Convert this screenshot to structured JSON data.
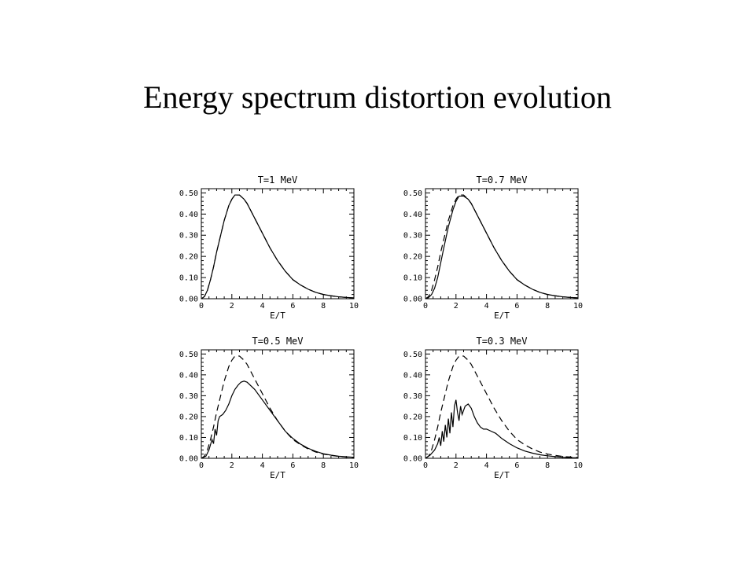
{
  "slide": {
    "title": "Energy spectrum distortion evolution"
  },
  "chart_data": [
    {
      "type": "line",
      "title": "T=1 MeV",
      "xlabel": "E/T",
      "ylabel": "",
      "xlim": [
        0,
        10
      ],
      "ylim": [
        0,
        0.52
      ],
      "x_ticks": [
        "0",
        "2",
        "4",
        "6",
        "8",
        "10"
      ],
      "y_ticks": [
        "0.00",
        "0.10",
        "0.20",
        "0.30",
        "0.40",
        "0.50"
      ],
      "series": [
        {
          "style": "dashed",
          "x": [
            0,
            0.2,
            0.4,
            0.6,
            0.8,
            1,
            1.2,
            1.5,
            1.8,
            2,
            2.2,
            2.5,
            2.8,
            3,
            3.5,
            4,
            4.5,
            5,
            5.5,
            6,
            6.5,
            7,
            7.5,
            8,
            8.5,
            9,
            9.5,
            10
          ],
          "y": [
            0,
            0.01,
            0.04,
            0.09,
            0.15,
            0.22,
            0.28,
            0.37,
            0.44,
            0.47,
            0.49,
            0.49,
            0.47,
            0.45,
            0.38,
            0.31,
            0.24,
            0.18,
            0.13,
            0.09,
            0.065,
            0.045,
            0.03,
            0.02,
            0.014,
            0.009,
            0.006,
            0.004
          ]
        },
        {
          "style": "solid",
          "x": [
            0,
            0.2,
            0.4,
            0.6,
            0.8,
            1,
            1.2,
            1.5,
            1.8,
            2,
            2.2,
            2.5,
            2.8,
            3,
            3.5,
            4,
            4.5,
            5,
            5.5,
            6,
            6.5,
            7,
            7.5,
            8,
            8.5,
            9,
            9.5,
            10
          ],
          "y": [
            0,
            0.01,
            0.04,
            0.09,
            0.15,
            0.22,
            0.28,
            0.37,
            0.44,
            0.47,
            0.49,
            0.49,
            0.47,
            0.45,
            0.38,
            0.31,
            0.24,
            0.18,
            0.13,
            0.09,
            0.065,
            0.045,
            0.03,
            0.02,
            0.014,
            0.009,
            0.006,
            0.004
          ]
        }
      ]
    },
    {
      "type": "line",
      "title": "T=0.7 MeV",
      "xlabel": "E/T",
      "ylabel": "",
      "xlim": [
        0,
        10
      ],
      "ylim": [
        0,
        0.52
      ],
      "x_ticks": [
        "0",
        "2",
        "4",
        "6",
        "8",
        "10"
      ],
      "y_ticks": [
        "0.00",
        "0.10",
        "0.20",
        "0.30",
        "0.40",
        "0.50"
      ],
      "series": [
        {
          "style": "dashed",
          "x": [
            0,
            0.2,
            0.4,
            0.6,
            0.8,
            1,
            1.2,
            1.5,
            1.8,
            2,
            2.2,
            2.5,
            2.8,
            3,
            3.5,
            4,
            4.5,
            5,
            5.5,
            6,
            6.5,
            7,
            7.5,
            8,
            8.5,
            9,
            9.5,
            10
          ],
          "y": [
            0,
            0.01,
            0.04,
            0.09,
            0.15,
            0.22,
            0.28,
            0.37,
            0.44,
            0.47,
            0.49,
            0.49,
            0.47,
            0.45,
            0.38,
            0.31,
            0.24,
            0.18,
            0.13,
            0.09,
            0.065,
            0.045,
            0.03,
            0.02,
            0.014,
            0.009,
            0.006,
            0.004
          ]
        },
        {
          "style": "solid",
          "x": [
            0,
            0.2,
            0.4,
            0.6,
            0.8,
            1,
            1.2,
            1.5,
            1.8,
            2,
            2.2,
            2.5,
            2.8,
            3,
            3.5,
            4,
            4.5,
            5,
            5.5,
            6,
            6.5,
            7,
            7.5,
            8,
            8.5,
            9,
            9.5,
            10
          ],
          "y": [
            0,
            0.005,
            0.02,
            0.05,
            0.1,
            0.17,
            0.24,
            0.34,
            0.42,
            0.46,
            0.485,
            0.485,
            0.47,
            0.45,
            0.38,
            0.31,
            0.24,
            0.18,
            0.13,
            0.09,
            0.065,
            0.045,
            0.03,
            0.02,
            0.014,
            0.009,
            0.006,
            0.004
          ]
        }
      ]
    },
    {
      "type": "line",
      "title": "T=0.5 MeV",
      "xlabel": "E/T",
      "ylabel": "",
      "xlim": [
        0,
        10
      ],
      "ylim": [
        0,
        0.52
      ],
      "x_ticks": [
        "0",
        "2",
        "4",
        "6",
        "8",
        "10"
      ],
      "y_ticks": [
        "0.00",
        "0.10",
        "0.20",
        "0.30",
        "0.40",
        "0.50"
      ],
      "series": [
        {
          "style": "dashed",
          "x": [
            0,
            0.2,
            0.4,
            0.6,
            0.8,
            1,
            1.2,
            1.5,
            1.8,
            2,
            2.2,
            2.5,
            2.8,
            3,
            3.5,
            4,
            4.5,
            5,
            5.5,
            6,
            6.5,
            7,
            7.5,
            8,
            8.5,
            9,
            9.5,
            10
          ],
          "y": [
            0,
            0.01,
            0.04,
            0.09,
            0.15,
            0.22,
            0.28,
            0.37,
            0.44,
            0.47,
            0.49,
            0.49,
            0.47,
            0.45,
            0.38,
            0.31,
            0.24,
            0.18,
            0.13,
            0.09,
            0.065,
            0.045,
            0.03,
            0.02,
            0.014,
            0.009,
            0.006,
            0.004
          ]
        },
        {
          "style": "solid",
          "x": [
            0,
            0.3,
            0.5,
            0.7,
            0.8,
            0.9,
            1.0,
            1.1,
            1.2,
            1.4,
            1.6,
            1.8,
            2.0,
            2.2,
            2.4,
            2.6,
            2.8,
            3,
            3.5,
            4,
            4.5,
            5,
            5.5,
            6,
            6.5,
            7,
            7.5,
            8,
            8.5,
            9,
            9.5,
            10
          ],
          "y": [
            0,
            0.01,
            0.04,
            0.09,
            0.07,
            0.14,
            0.11,
            0.18,
            0.2,
            0.21,
            0.23,
            0.26,
            0.3,
            0.33,
            0.35,
            0.365,
            0.37,
            0.365,
            0.33,
            0.28,
            0.23,
            0.18,
            0.13,
            0.095,
            0.068,
            0.048,
            0.033,
            0.022,
            0.015,
            0.01,
            0.007,
            0.005
          ]
        }
      ]
    },
    {
      "type": "line",
      "title": "T=0.3 MeV",
      "xlabel": "E/T",
      "ylabel": "",
      "xlim": [
        0,
        10
      ],
      "ylim": [
        0,
        0.52
      ],
      "x_ticks": [
        "0",
        "2",
        "4",
        "6",
        "8",
        "10"
      ],
      "y_ticks": [
        "0.00",
        "0.10",
        "0.20",
        "0.30",
        "0.40",
        "0.50"
      ],
      "series": [
        {
          "style": "dashed",
          "x": [
            0,
            0.2,
            0.4,
            0.6,
            0.8,
            1,
            1.2,
            1.5,
            1.8,
            2,
            2.2,
            2.5,
            2.8,
            3,
            3.5,
            4,
            4.5,
            5,
            5.5,
            6,
            6.5,
            7,
            7.5,
            8,
            8.5,
            9,
            9.5,
            10
          ],
          "y": [
            0,
            0.01,
            0.04,
            0.09,
            0.15,
            0.22,
            0.28,
            0.37,
            0.44,
            0.47,
            0.49,
            0.49,
            0.47,
            0.45,
            0.38,
            0.31,
            0.24,
            0.18,
            0.13,
            0.09,
            0.065,
            0.045,
            0.03,
            0.02,
            0.014,
            0.009,
            0.006,
            0.004
          ]
        },
        {
          "style": "solid",
          "x": [
            0,
            0.3,
            0.6,
            0.8,
            0.9,
            1.0,
            1.1,
            1.2,
            1.3,
            1.4,
            1.5,
            1.6,
            1.7,
            1.8,
            1.9,
            2.0,
            2.1,
            2.2,
            2.3,
            2.4,
            2.5,
            2.6,
            2.8,
            3.0,
            3.2,
            3.4,
            3.6,
            3.8,
            4.0,
            4.3,
            4.6,
            5,
            5.5,
            6,
            6.5,
            7,
            7.5,
            8,
            8.5,
            9,
            9.5,
            10
          ],
          "y": [
            0,
            0.015,
            0.04,
            0.07,
            0.1,
            0.06,
            0.13,
            0.08,
            0.16,
            0.1,
            0.19,
            0.12,
            0.22,
            0.15,
            0.25,
            0.28,
            0.22,
            0.18,
            0.25,
            0.21,
            0.23,
            0.25,
            0.26,
            0.24,
            0.2,
            0.17,
            0.15,
            0.14,
            0.14,
            0.13,
            0.12,
            0.095,
            0.07,
            0.05,
            0.035,
            0.025,
            0.017,
            0.012,
            0.008,
            0.005,
            0.003,
            0.002
          ]
        }
      ]
    }
  ]
}
